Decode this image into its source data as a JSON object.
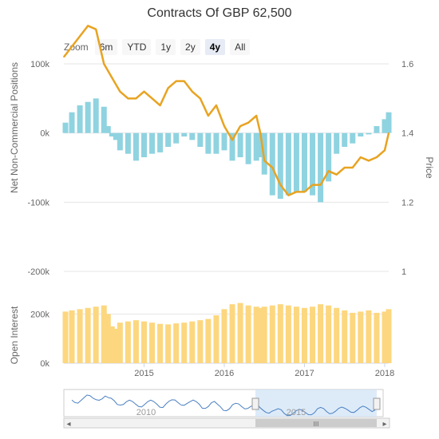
{
  "title": "Contracts Of GBP 62,500",
  "zoom": {
    "label": "Zoom",
    "buttons": [
      "6m",
      "YTD",
      "1y",
      "2y",
      "4y",
      "All"
    ],
    "active": "4y"
  },
  "colors": {
    "price_line": "#E8A321",
    "net_bars": "#8FD3E0",
    "oi_bars": "#FCD77F",
    "navigator_line": "#4A7FC1",
    "navigator_mask": "#CFE3F7",
    "grid": "#E6E6E6"
  },
  "navigator": {
    "labels": [
      "2010",
      "2015"
    ],
    "scroll_grip": "III"
  },
  "chart_data": [
    {
      "type": "line",
      "title": "Contracts Of GBP 62,500",
      "xlabel": "",
      "ylabel": "Net Non-Commercial Positions",
      "ylabel_right": "Price",
      "x_ticks": [
        "2015",
        "2016",
        "2017",
        "2018"
      ],
      "y_ticks_left": [
        "100k",
        "0k",
        "-100k",
        "-200k"
      ],
      "y_ticks_right": [
        "1.6",
        "1.4",
        "1.2",
        "1"
      ],
      "ylim_left": [
        -200000,
        100000
      ],
      "ylim_right": [
        1.0,
        1.6
      ],
      "series": [
        {
          "name": "Net Non-Commercial Positions",
          "type": "bar",
          "axis": "left",
          "x": [
            2014.02,
            2014.1,
            2014.2,
            2014.3,
            2014.4,
            2014.5,
            2014.55,
            2014.6,
            2014.65,
            2014.7,
            2014.8,
            2014.9,
            2015.0,
            2015.1,
            2015.2,
            2015.3,
            2015.4,
            2015.5,
            2015.6,
            2015.7,
            2015.8,
            2015.9,
            2016.0,
            2016.1,
            2016.2,
            2016.3,
            2016.4,
            2016.45,
            2016.5,
            2016.6,
            2016.7,
            2016.8,
            2016.9,
            2017.0,
            2017.1,
            2017.2,
            2017.3,
            2017.4,
            2017.5,
            2017.6,
            2017.7,
            2017.8,
            2017.9,
            2018.0,
            2018.05
          ],
          "values": [
            15000,
            30000,
            40000,
            45000,
            50000,
            38000,
            10000,
            -5000,
            -10000,
            -25000,
            -30000,
            -40000,
            -35000,
            -30000,
            -28000,
            -20000,
            -15000,
            -5000,
            -10000,
            -20000,
            -30000,
            -30000,
            -25000,
            -40000,
            -35000,
            -45000,
            -40000,
            -35000,
            -60000,
            -90000,
            -95000,
            -90000,
            -85000,
            -85000,
            -90000,
            -100000,
            -70000,
            -30000,
            -20000,
            -15000,
            -5000,
            -2000,
            10000,
            20000,
            30000
          ]
        },
        {
          "name": "Price",
          "type": "line",
          "axis": "right",
          "x": [
            2014.0,
            2014.1,
            2014.2,
            2014.3,
            2014.4,
            2014.5,
            2014.6,
            2014.7,
            2014.8,
            2014.9,
            2015.0,
            2015.1,
            2015.2,
            2015.3,
            2015.4,
            2015.5,
            2015.6,
            2015.7,
            2015.8,
            2015.9,
            2016.0,
            2016.1,
            2016.2,
            2016.3,
            2016.4,
            2016.45,
            2016.5,
            2016.6,
            2016.7,
            2016.8,
            2016.9,
            2017.0,
            2017.1,
            2017.2,
            2017.3,
            2017.4,
            2017.5,
            2017.6,
            2017.7,
            2017.8,
            2017.9,
            2018.0,
            2018.05
          ],
          "values": [
            1.62,
            1.65,
            1.68,
            1.71,
            1.7,
            1.6,
            1.56,
            1.52,
            1.5,
            1.5,
            1.52,
            1.5,
            1.48,
            1.53,
            1.55,
            1.55,
            1.52,
            1.5,
            1.45,
            1.48,
            1.42,
            1.38,
            1.42,
            1.43,
            1.45,
            1.4,
            1.32,
            1.3,
            1.25,
            1.22,
            1.23,
            1.23,
            1.25,
            1.25,
            1.29,
            1.28,
            1.3,
            1.3,
            1.33,
            1.32,
            1.33,
            1.35,
            1.4
          ]
        }
      ]
    },
    {
      "type": "bar",
      "title": "",
      "xlabel": "",
      "ylabel": "Open Interest",
      "x_ticks": [
        "2015",
        "2016",
        "2017",
        "2018"
      ],
      "y_ticks": [
        "200k",
        "0k"
      ],
      "ylim": [
        0,
        260000
      ],
      "series": [
        {
          "name": "Open Interest",
          "x": [
            2014.02,
            2014.1,
            2014.2,
            2014.3,
            2014.4,
            2014.5,
            2014.55,
            2014.6,
            2014.65,
            2014.7,
            2014.8,
            2014.9,
            2015.0,
            2015.1,
            2015.2,
            2015.3,
            2015.4,
            2015.5,
            2015.6,
            2015.7,
            2015.8,
            2015.9,
            2016.0,
            2016.1,
            2016.2,
            2016.3,
            2016.4,
            2016.45,
            2016.5,
            2016.6,
            2016.7,
            2016.8,
            2016.9,
            2017.0,
            2017.1,
            2017.2,
            2017.3,
            2017.4,
            2017.5,
            2017.6,
            2017.7,
            2017.8,
            2017.9,
            2018.0,
            2018.05
          ],
          "values": [
            210000,
            215000,
            220000,
            225000,
            230000,
            235000,
            200000,
            150000,
            140000,
            165000,
            170000,
            175000,
            170000,
            165000,
            160000,
            158000,
            162000,
            165000,
            170000,
            175000,
            180000,
            195000,
            220000,
            240000,
            245000,
            235000,
            230000,
            225000,
            230000,
            235000,
            240000,
            235000,
            230000,
            225000,
            230000,
            240000,
            235000,
            225000,
            215000,
            205000,
            210000,
            215000,
            205000,
            210000,
            220000
          ]
        }
      ]
    }
  ]
}
